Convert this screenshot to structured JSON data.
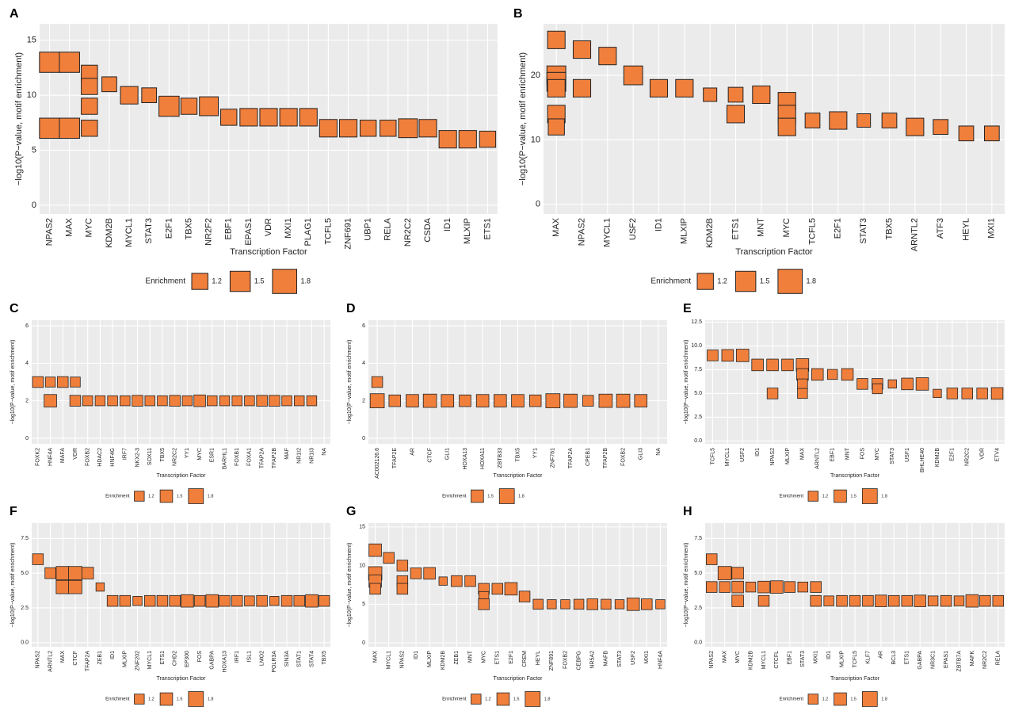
{
  "chart_data": [
    {
      "type": "scatter",
      "panel": "A",
      "xlabel": "Transcription Factor",
      "ylabel": "−log10(P−value, motif enrichment)",
      "legend_title": "Enrichment",
      "legend_sizes": [
        1.2,
        1.5,
        1.8
      ],
      "categories": [
        "NPAS2",
        "MAX",
        "MYC",
        "KDM2B",
        "MYCL1",
        "STAT3",
        "E2F1",
        "TBX5",
        "NR2F2",
        "EBF1",
        "EPAS1",
        "VDR",
        "MXI1",
        "PLAG1",
        "TCFL5",
        "ZNF691",
        "UBP1",
        "RELA",
        "NR2C2",
        "CSDA",
        "ID1",
        "MLXIP",
        "ETS1"
      ],
      "ylim": [
        -0.8,
        16.5
      ],
      "yticks": [
        0,
        5,
        10,
        15
      ],
      "grid": true,
      "x": [
        "NPAS2",
        "NPAS2",
        "MAX",
        "MAX",
        "MYC",
        "MYC",
        "MYC",
        "MYC",
        "KDM2B",
        "MYCL1",
        "STAT3",
        "E2F1",
        "TBX5",
        "NR2F2",
        "EBF1",
        "EPAS1",
        "VDR",
        "MXI1",
        "PLAG1",
        "TCFL5",
        "ZNF691",
        "UBP1",
        "RELA",
        "NR2C2",
        "CSDA",
        "ID1",
        "MLXIP",
        "ETS1"
      ],
      "y": [
        13,
        7,
        13,
        7,
        12,
        10.8,
        9,
        7,
        11,
        10,
        10,
        9,
        9,
        9,
        8,
        8,
        8,
        8,
        8,
        7,
        7,
        7,
        7,
        7,
        7,
        6,
        6,
        6
      ],
      "size": [
        1.5,
        1.5,
        1.5,
        1.5,
        1.2,
        1.2,
        1.2,
        1.2,
        1.1,
        1.3,
        1.1,
        1.5,
        1.2,
        1.4,
        1.2,
        1.3,
        1.3,
        1.3,
        1.3,
        1.3,
        1.3,
        1.2,
        1.2,
        1.4,
        1.3,
        1.3,
        1.3,
        1.2
      ],
      "color": "#f07f3c"
    },
    {
      "type": "scatter",
      "panel": "B",
      "xlabel": "Transcription Factor",
      "ylabel": "−log10(P−value, motif enrichment)",
      "legend_title": "Enrichment",
      "legend_sizes": [
        1.2,
        1.5,
        1.8
      ],
      "categories": [
        "MAX",
        "NPAS2",
        "MYCL1",
        "USF2",
        "ID1",
        "MLXIP",
        "KDM2B",
        "ETS1",
        "MNT",
        "MYC",
        "TCFL5",
        "E2F1",
        "STAT3",
        "TBX5",
        "ARNTL2",
        "ATF3",
        "HEYL",
        "MXI1"
      ],
      "ylim": [
        -1.5,
        28
      ],
      "yticks": [
        0,
        10,
        20
      ],
      "grid": true,
      "x": [
        "MAX",
        "MAX",
        "MAX",
        "MAX",
        "MAX",
        "MAX",
        "NPAS2",
        "NPAS2",
        "MYCL1",
        "USF2",
        "ID1",
        "MLXIP",
        "KDM2B",
        "ETS1",
        "ETS1",
        "MNT",
        "MYC",
        "MYC",
        "MYC",
        "TCFL5",
        "E2F1",
        "STAT3",
        "TBX5",
        "ARNTL2",
        "ATF3",
        "HEYL",
        "MXI1"
      ],
      "y": [
        25.5,
        20,
        19,
        18,
        14,
        12,
        24,
        18,
        23,
        20,
        18,
        18,
        17,
        17,
        14,
        17,
        16,
        14,
        12,
        13,
        13,
        13,
        13,
        12,
        12,
        11,
        11
      ],
      "size": [
        1.3,
        1.4,
        1.4,
        1.3,
        1.3,
        1.2,
        1.3,
        1.3,
        1.3,
        1.4,
        1.3,
        1.3,
        1.0,
        1.1,
        1.3,
        1.3,
        1.3,
        1.3,
        1.3,
        1.1,
        1.3,
        1.0,
        1.1,
        1.3,
        1.1,
        1.1,
        1.1
      ],
      "color": "#f07f3c"
    },
    {
      "type": "scatter",
      "panel": "C",
      "xlabel": "Transcription Factor",
      "ylabel": "−log10(P−value, motif enrichment)",
      "legend_title": "Enrichment",
      "legend_sizes": [
        1.2,
        1.5,
        1.8
      ],
      "categories": [
        "FOXK2",
        "HNF4A",
        "MAFA",
        "VDR",
        "FOXB2",
        "HDAC2",
        "HNF4G",
        "IRF7",
        "NKX2-3",
        "SOX11",
        "TBX5",
        "NR2C2",
        "YY1",
        "MYC",
        "ESR1",
        "BARHL1",
        "FOXB1",
        "FOXA1",
        "TFAP2A",
        "TFAP2B",
        "MAF",
        "NR1I2",
        "NR1I3",
        "NA"
      ],
      "ylim": [
        -0.3,
        6.3
      ],
      "yticks": [
        0,
        2,
        4,
        6
      ],
      "grid": true,
      "x": [
        "FOXK2",
        "HNF4A",
        "HNF4A",
        "MAFA",
        "VDR",
        "VDR",
        "FOXB2",
        "HDAC2",
        "HNF4G",
        "IRF7",
        "NKX2-3",
        "SOX11",
        "TBX5",
        "NR2C2",
        "YY1",
        "MYC",
        "ESR1",
        "BARHL1",
        "FOXB1",
        "FOXA1",
        "TFAP2A",
        "TFAP2B",
        "MAF",
        "NR1I2",
        "NR1I3"
      ],
      "y": [
        3,
        3,
        2,
        3,
        3,
        2,
        2,
        2,
        2,
        2,
        2,
        2,
        2,
        2,
        2,
        2,
        2,
        2,
        2,
        2,
        2,
        2,
        2,
        2,
        2
      ],
      "size": [
        1.3,
        1.2,
        1.5,
        1.3,
        1.2,
        1.3,
        1.2,
        1.2,
        1.2,
        1.2,
        1.3,
        1.2,
        1.2,
        1.3,
        1.2,
        1.4,
        1.2,
        1.2,
        1.2,
        1.2,
        1.3,
        1.3,
        1.2,
        1.2,
        1.2
      ],
      "color": "#f07f3c"
    },
    {
      "type": "scatter",
      "panel": "D",
      "xlabel": "Transcription Factor",
      "ylabel": "−log10(P−value, motif enrichment)",
      "legend_title": "Enrichment",
      "legend_sizes": [
        1.5,
        1.8
      ],
      "categories": [
        "AC002126.6",
        "TFAP2E",
        "AR",
        "CTCF",
        "GLI1",
        "HOXA13",
        "HOXA11",
        "ZBTB33",
        "TBX5",
        "YY1",
        "ZNF761",
        "TFAP2A",
        "CPEB1",
        "TFAP2B",
        "FOXB2",
        "GLI3",
        "NA"
      ],
      "ylim": [
        -0.3,
        6.3
      ],
      "yticks": [
        0,
        2,
        4,
        6
      ],
      "grid": true,
      "x": [
        "AC002126.6",
        "AC002126.6",
        "TFAP2E",
        "AR",
        "CTCF",
        "GLI1",
        "HOXA13",
        "HOXA11",
        "ZBTB33",
        "TBX5",
        "YY1",
        "ZNF761",
        "TFAP2A",
        "CPEB1",
        "TFAP2B",
        "FOXB2",
        "GLI3"
      ],
      "y": [
        3,
        2,
        2,
        2,
        2,
        2,
        2,
        2,
        2,
        2,
        2,
        2,
        2,
        2,
        2,
        2,
        2
      ],
      "size": [
        1.3,
        1.7,
        1.4,
        1.5,
        1.6,
        1.5,
        1.4,
        1.5,
        1.5,
        1.5,
        1.4,
        1.7,
        1.6,
        1.3,
        1.6,
        1.6,
        1.5
      ],
      "color": "#f07f3c"
    },
    {
      "type": "scatter",
      "panel": "E",
      "xlabel": "Transcription Factor",
      "ylabel": "−log10(P−value, motif enrichment)",
      "legend_title": "Enrichment",
      "legend_sizes": [
        1.2,
        1.5,
        1.8
      ],
      "categories": [
        "TCFL5",
        "MYCL1",
        "USF2",
        "ID1",
        "NPAS2",
        "MLXIP",
        "MAX",
        "ARNTL2",
        "EBF1",
        "MNT",
        "FOS",
        "MYC",
        "STAT3",
        "USF1",
        "BHLHE40",
        "KDM2B",
        "E2F1",
        "NR2C2",
        "VDR",
        "ETV4"
      ],
      "ylim": [
        -0.3,
        12.7
      ],
      "yticks": [
        {
          "value": 0,
          "label": "0.0"
        },
        {
          "value": 2.5,
          "label": "2.5"
        },
        {
          "value": 5,
          "label": "5.0"
        },
        {
          "value": 7.5,
          "label": "7.5"
        },
        {
          "value": 10,
          "label": "10.0"
        },
        {
          "value": 12.5,
          "label": "12.5"
        }
      ],
      "grid": true,
      "x": [
        "TCFL5",
        "MYCL1",
        "USF2",
        "ID1",
        "NPAS2",
        "NPAS2",
        "MLXIP",
        "MAX",
        "MAX",
        "MAX",
        "MAX",
        "ARNTL2",
        "EBF1",
        "MNT",
        "FOS",
        "MYC",
        "MYC",
        "STAT3",
        "USF1",
        "BHLHE40",
        "KDM2B",
        "E2F1",
        "NR2C2",
        "VDR",
        "ETV4"
      ],
      "y": [
        9,
        9,
        9,
        8,
        8,
        5,
        8,
        8,
        7,
        6,
        5,
        7,
        7,
        7,
        6,
        6,
        5.5,
        6,
        6,
        6,
        5,
        5,
        5,
        5,
        5
      ],
      "size": [
        1.3,
        1.4,
        1.5,
        1.4,
        1.4,
        1.3,
        1.4,
        1.5,
        1.4,
        1.2,
        1.2,
        1.4,
        1.2,
        1.4,
        1.3,
        1.3,
        1.2,
        1.0,
        1.4,
        1.5,
        1.0,
        1.3,
        1.3,
        1.3,
        1.4
      ],
      "color": "#f07f3c"
    },
    {
      "type": "scatter",
      "panel": "F",
      "xlabel": "Transcription Factor",
      "ylabel": "−log10(P−value, motif enrichment)",
      "legend_title": "Enrichment",
      "legend_sizes": [
        1.2,
        1.5,
        1.8
      ],
      "categories": [
        "NPAS2",
        "ARNTL2",
        "MAX",
        "CTCF",
        "TFAP2A",
        "ZEB1",
        "ID1",
        "MLXIP",
        "ZNF202",
        "MYCL1",
        "ETS1",
        "CHD2",
        "EP300",
        "FOS",
        "GABPA",
        "HOXA13",
        "IRF1",
        "ISL1",
        "LMO2",
        "POLR3A",
        "SIN3A",
        "STAT1",
        "STAT4",
        "TBX5"
      ],
      "ylim": [
        -0.3,
        8.6
      ],
      "yticks": [
        {
          "value": 0,
          "label": "0.0"
        },
        {
          "value": 2.5,
          "label": "2.5"
        },
        {
          "value": 5,
          "label": "5.0"
        },
        {
          "value": 7.5,
          "label": "7.5"
        }
      ],
      "grid": true,
      "x": [
        "NPAS2",
        "ARNTL2",
        "MAX",
        "MAX",
        "CTCF",
        "CTCF",
        "TFAP2A",
        "ZEB1",
        "ID1",
        "MLXIP",
        "ZNF202",
        "MYCL1",
        "ETS1",
        "CHD2",
        "EP300",
        "FOS",
        "GABPA",
        "HOXA13",
        "IRF1",
        "ISL1",
        "LMO2",
        "POLR3A",
        "SIN3A",
        "STAT1",
        "STAT4",
        "TBX5"
      ],
      "y": [
        6,
        5,
        5,
        4,
        5,
        4,
        5,
        4,
        3,
        3,
        3,
        3,
        3,
        3,
        3,
        3,
        3,
        3,
        3,
        3,
        3,
        3,
        3,
        3,
        3,
        3
      ],
      "size": [
        1.3,
        1.3,
        1.6,
        1.6,
        1.6,
        1.6,
        1.4,
        1.0,
        1.3,
        1.3,
        1.1,
        1.3,
        1.3,
        1.3,
        1.5,
        1.3,
        1.5,
        1.3,
        1.3,
        1.2,
        1.3,
        1.1,
        1.3,
        1.3,
        1.5,
        1.3
      ],
      "color": "#f07f3c"
    },
    {
      "type": "scatter",
      "panel": "G",
      "xlabel": "Transcription Factor",
      "ylabel": "−log10(P−value, motif enrichment)",
      "legend_title": "Enrichment",
      "legend_sizes": [
        1.2,
        1.5,
        1.8
      ],
      "categories": [
        "MAX",
        "MYCL1",
        "NPAS2",
        "ID1",
        "MLXIP",
        "KDM2B",
        "ZEB1",
        "MNT",
        "MYC",
        "ETS1",
        "E2F1",
        "CREM",
        "HEYL",
        "ZNF891",
        "FOXB2",
        "CEBPG",
        "NR5A2",
        "MAFB",
        "STAT3",
        "USF2",
        "MXI1",
        "HNF4A"
      ],
      "ylim": [
        -0.5,
        15.5
      ],
      "yticks": [
        0,
        5,
        10,
        15
      ],
      "grid": true,
      "x": [
        "MAX",
        "MAX",
        "MAX",
        "MAX",
        "MYCL1",
        "NPAS2",
        "NPAS2",
        "NPAS2",
        "ID1",
        "MLXIP",
        "KDM2B",
        "ZEB1",
        "MNT",
        "MYC",
        "MYC",
        "MYC",
        "ETS1",
        "E2F1",
        "CREM",
        "HEYL",
        "ZNF891",
        "FOXB2",
        "CEBPG",
        "NR5A2",
        "MAFB",
        "STAT3",
        "USF2",
        "MXI1",
        "HNF4A"
      ],
      "y": [
        12,
        9,
        8,
        7,
        11,
        10,
        8,
        7,
        9,
        9,
        8,
        8,
        8,
        7,
        6,
        5,
        7,
        7,
        6,
        5,
        5,
        5,
        5,
        5,
        5,
        5,
        5,
        5,
        5
      ],
      "size": [
        1.5,
        1.6,
        1.5,
        1.3,
        1.3,
        1.3,
        1.3,
        1.3,
        1.3,
        1.4,
        1.0,
        1.3,
        1.3,
        1.3,
        1.2,
        1.3,
        1.3,
        1.5,
        1.3,
        1.2,
        1.1,
        1.1,
        1.2,
        1.3,
        1.2,
        1.1,
        1.5,
        1.3,
        1.1
      ],
      "color": "#f07f3c"
    },
    {
      "type": "scatter",
      "panel": "H",
      "xlabel": "Transcription Factor",
      "ylabel": "−log10(P−value, motif enrichment)",
      "legend_title": "Enrichment",
      "legend_sizes": [
        1.2,
        1.5,
        1.8
      ],
      "categories": [
        "NPAS2",
        "MAX",
        "MYC",
        "KDM2B",
        "MYCL1",
        "CTCFL",
        "EBF1",
        "STAT3",
        "MXI1",
        "ID1",
        "MLXIP",
        "TCFL5",
        "KLF7",
        "AR",
        "BCL3",
        "ETS1",
        "GABPA",
        "NR3C1",
        "EPAS1",
        "ZBTB7A",
        "MAFK",
        "NR2C2",
        "RELA"
      ],
      "ylim": [
        -0.3,
        8.6
      ],
      "yticks": [
        {
          "value": 0,
          "label": "0.0"
        },
        {
          "value": 2.5,
          "label": "2.5"
        },
        {
          "value": 5,
          "label": "5.0"
        },
        {
          "value": 7.5,
          "label": "7.5"
        }
      ],
      "grid": true,
      "x": [
        "NPAS2",
        "NPAS2",
        "MAX",
        "MAX",
        "MYC",
        "MYC",
        "MYC",
        "KDM2B",
        "MYCL1",
        "MYCL1",
        "CTCFL",
        "EBF1",
        "STAT3",
        "MXI1",
        "MXI1",
        "ID1",
        "MLXIP",
        "TCFL5",
        "KLF7",
        "AR",
        "BCL3",
        "ETS1",
        "GABPA",
        "NR3C1",
        "EPAS1",
        "ZBTB7A",
        "MAFK",
        "NR2C2",
        "RELA"
      ],
      "y": [
        6,
        4,
        5,
        4,
        5,
        4,
        3,
        4,
        4,
        3,
        4,
        4,
        4,
        4,
        3,
        3,
        3,
        3,
        3,
        3,
        3,
        3,
        3,
        3,
        3,
        3,
        3,
        3,
        3
      ],
      "size": [
        1.3,
        1.3,
        1.6,
        1.3,
        1.4,
        1.4,
        1.4,
        1.2,
        1.4,
        1.3,
        1.5,
        1.3,
        1.2,
        1.3,
        1.3,
        1.2,
        1.3,
        1.3,
        1.3,
        1.4,
        1.3,
        1.3,
        1.4,
        1.2,
        1.3,
        1.2,
        1.5,
        1.3,
        1.3
      ],
      "color": "#f07f3c"
    }
  ]
}
